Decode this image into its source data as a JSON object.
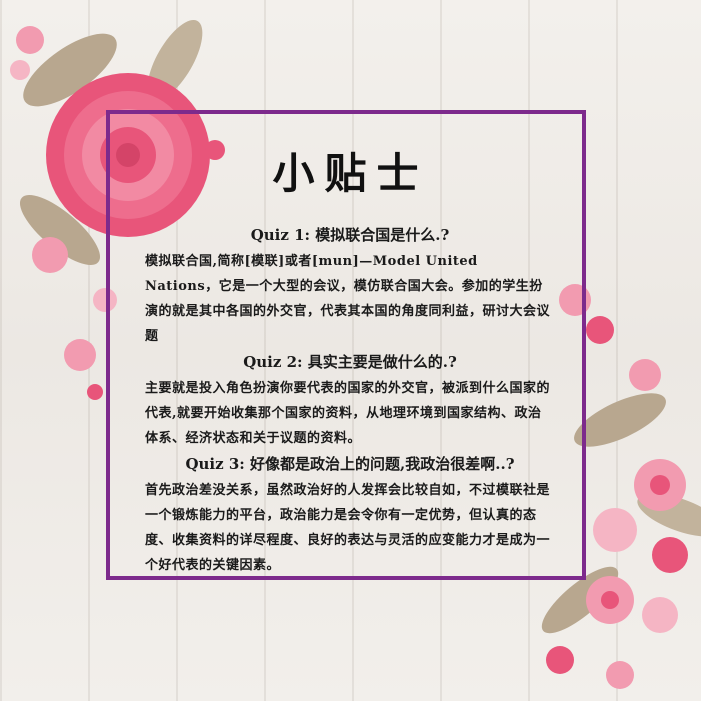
{
  "title": "小贴士",
  "quizzes": [
    {
      "question": "Quiz 1: 模拟联合国是什么.?",
      "answer": "模拟联合国,简称[模联]或者[mun]—Model United Nations，它是一个大型的会议，模仿联合国大会。参加的学生扮演的就是其中各国的外交官，代表其本国的角度同利益，研讨大会议题"
    },
    {
      "question": "Quiz 2: 具实主要是做什么的.?",
      "answer": "主要就是投入角色扮演你要代表的国家的外交官，被派到什么国家的代表,就要开始收集那个国家的资料，从地理环境到国家结构、政治体系、经济状态和关于议题的资料。"
    },
    {
      "question": "Quiz 3: 好像都是政治上的问题,我政治很差啊..?",
      "answer": "首先政治差没关系，虽然政治好的人发挥会比较自如，不过模联社是一个锻炼能力的平台，政治能力是会令你有一定优势，但认真的态度、收集资料的详尽程度、良好的表达与灵活的应变能力才是成为一个好代表的关键因素。"
    }
  ],
  "colors": {
    "frame": "#7d2a8c",
    "rose": "#e8557a",
    "petal_light": "#f29bb0",
    "leaf": "#b8a78f"
  }
}
